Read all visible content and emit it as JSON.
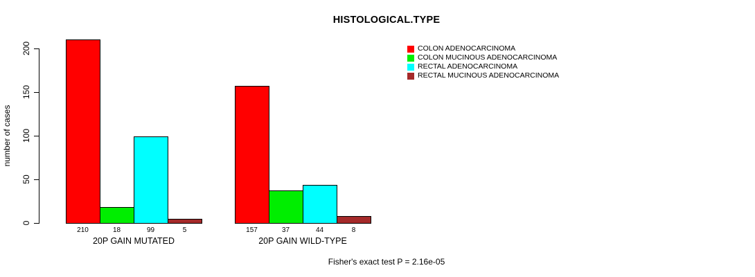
{
  "chart_data": {
    "type": "bar",
    "title": "HISTOLOGICAL.TYPE",
    "xlabel": "",
    "ylabel": "number of cases",
    "categories": [
      "20P GAIN MUTATED",
      "20P GAIN WILD-TYPE"
    ],
    "series": [
      {
        "name": "COLON ADENOCARCINOMA",
        "color": "#FF0000",
        "values": [
          210,
          157
        ]
      },
      {
        "name": "COLON MUCINOUS ADENOCARCINOMA",
        "color": "#00EE00",
        "values": [
          18,
          37
        ]
      },
      {
        "name": "RECTAL ADENOCARCINOMA",
        "color": "#00FFFF",
        "values": [
          99,
          44
        ]
      },
      {
        "name": "RECTAL MUCINOUS ADENOCARCINOMA",
        "color": "#A52A2A",
        "values": [
          5,
          8
        ]
      }
    ],
    "yticks": [
      0,
      50,
      100,
      150,
      200
    ],
    "ylim": [
      0,
      210
    ],
    "grid": false,
    "legend_position": "top-right",
    "bar_value_labels": true,
    "annotation": "Fisher's exact test P = 2.16e-05"
  }
}
